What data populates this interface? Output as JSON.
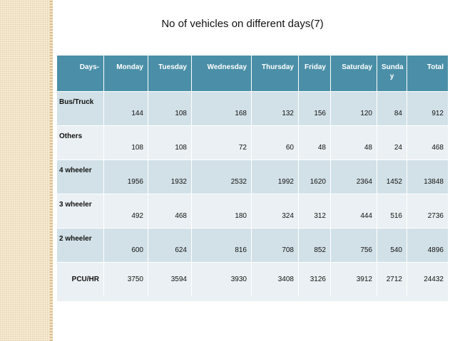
{
  "title": "No of vehicles on different days(7)",
  "table": {
    "headers": [
      "Days-",
      "Monday",
      "Tuesday",
      "Wednesday",
      "Thursday",
      "Friday",
      "Saturday",
      "Sunda\ny",
      "Total"
    ],
    "rows": [
      {
        "label": "Bus/Truck",
        "values": [
          "144",
          "108",
          "168",
          "132",
          "156",
          "120",
          "84",
          "912"
        ]
      },
      {
        "label": "Others",
        "values": [
          "108",
          "108",
          "72",
          "60",
          "48",
          "48",
          "24",
          "468"
        ]
      },
      {
        "label": "4 wheeler",
        "values": [
          "1956",
          "1932",
          "2532",
          "1992",
          "1620",
          "2364",
          "1452",
          "13848"
        ]
      },
      {
        "label": "3 wheeler",
        "values": [
          "492",
          "468",
          "180",
          "324",
          "312",
          "444",
          "516",
          "2736"
        ]
      },
      {
        "label": "2 wheeler",
        "values": [
          "600",
          "624",
          "816",
          "708",
          "852",
          "756",
          "540",
          "4896"
        ]
      },
      {
        "label": "PCU/HR",
        "values": [
          "3750",
          "3594",
          "3930",
          "3408",
          "3126",
          "3912",
          "2712",
          "24432"
        ]
      }
    ]
  },
  "colors": {
    "header_bg": "#4a8fa7",
    "row_dark": "#d2e1e8",
    "row_light": "#eaf0f3",
    "side_strip": "#f6ebd3"
  }
}
